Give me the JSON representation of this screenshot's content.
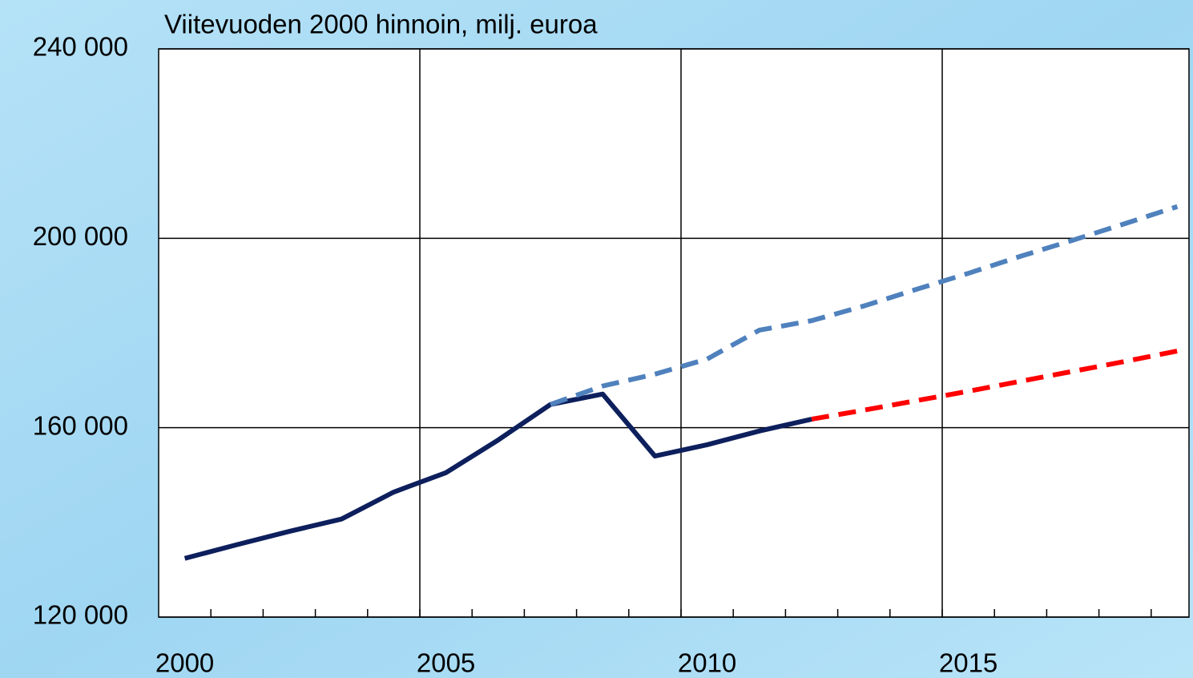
{
  "chart_data": {
    "type": "line",
    "title": "Viitevuoden 2000 hinnoin, milj. euroa",
    "categories": [
      "2000",
      null,
      null,
      null,
      null,
      "2005",
      null,
      null,
      null,
      null,
      "2010",
      null,
      null,
      null,
      null,
      "2015",
      null,
      null,
      null,
      null
    ],
    "series": [
      {
        "color": "#0d1f5c",
        "dash": false,
        "values": [
          132400,
          135300,
          138100,
          140700,
          146400,
          150500,
          157400,
          164900,
          167100,
          154000,
          156400,
          159300,
          161800,
          null,
          null,
          null,
          null,
          null,
          null,
          null
        ]
      },
      {
        "color": "#4f81bd",
        "dash": true,
        "values": [
          null,
          null,
          null,
          null,
          null,
          null,
          null,
          164900,
          168800,
          171300,
          174500,
          180600,
          182600,
          185700,
          189200,
          192600,
          196200,
          199600,
          203100,
          206700
        ]
      },
      {
        "color": "#ff0000",
        "dash": true,
        "values": [
          null,
          null,
          null,
          null,
          null,
          null,
          null,
          null,
          null,
          null,
          null,
          null,
          161800,
          163700,
          165700,
          167700,
          169800,
          171900,
          174000,
          176200
        ]
      }
    ],
    "ylim": [
      120000,
      240000
    ],
    "yticks": [
      {
        "value": 120000,
        "label": "120 000"
      },
      {
        "value": 160000,
        "label": "160 000"
      },
      {
        "value": 200000,
        "label": "200 000"
      },
      {
        "value": 240000,
        "label": "240 000"
      }
    ],
    "grid": true
  }
}
